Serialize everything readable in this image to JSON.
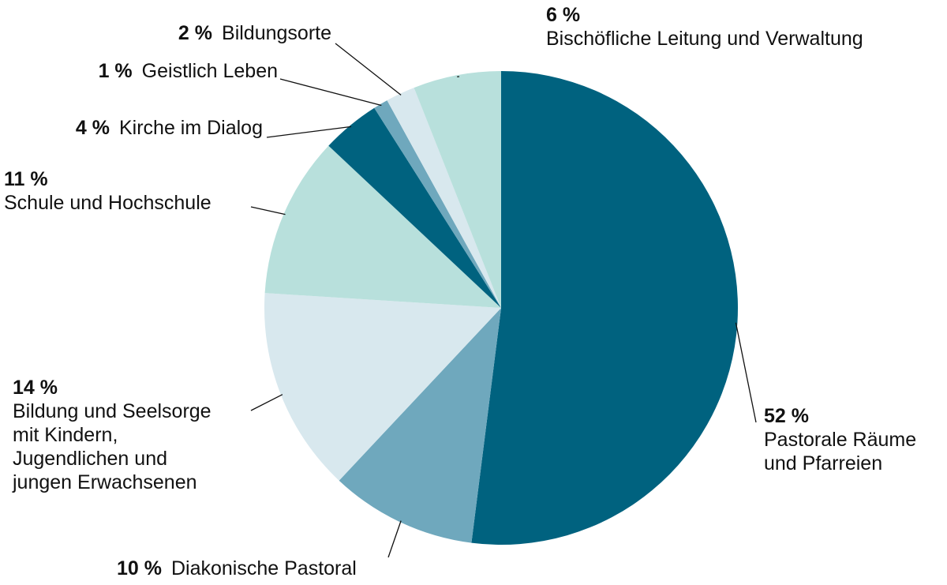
{
  "chart_data": {
    "type": "pie",
    "categories": [
      "Pastorale Räume\nund Pfarreien",
      "Diakonische Pastoral",
      "Bildung und Seelsorge\nmit Kindern,\nJugendlichen und\njungen Erwachsenen",
      "Schule und Hochschule",
      "Kirche im Dialog",
      "Geistlich Leben",
      "Bildungsorte",
      "Bischöfliche Leitung und Verwaltung"
    ],
    "values": [
      52,
      10,
      14,
      11,
      4,
      1,
      2,
      6
    ],
    "value_labels": [
      "52 %",
      "10 %",
      "14 %",
      "11 %",
      "4 %",
      "1 %",
      "2 %",
      "6 %"
    ],
    "colors": [
      "#00627f",
      "#6fa8bd",
      "#d8e8ee",
      "#b8e0dc",
      "#00627f",
      "#6fa8bd",
      "#d8e8ee",
      "#b8e0dc"
    ]
  }
}
